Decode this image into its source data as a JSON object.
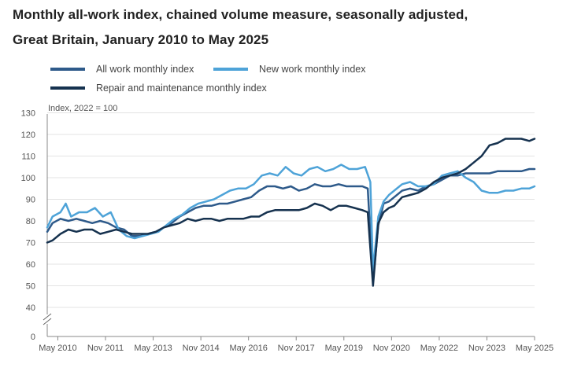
{
  "chart_data": {
    "type": "line",
    "title": "Monthly all-work index, chained volume measure, seasonally adjusted,",
    "subtitle": "Great Britain, January 2010 to May 2025",
    "ylabel": "Index, 2022 = 100",
    "ylim": [
      0,
      130
    ],
    "yticks": [
      0,
      40,
      50,
      60,
      70,
      80,
      90,
      100,
      110,
      120,
      130
    ],
    "xlim": [
      "2010-01",
      "2025-05"
    ],
    "xticks": [
      "May 2010",
      "Nov 2011",
      "May 2013",
      "Nov 2014",
      "May 2016",
      "Nov 2017",
      "May 2019",
      "Nov 2020",
      "May 2022",
      "Nov 2023",
      "May 2025"
    ],
    "xtick_dates": [
      "2010-05",
      "2011-11",
      "2013-05",
      "2014-11",
      "2016-05",
      "2017-11",
      "2019-05",
      "2020-11",
      "2022-05",
      "2023-11",
      "2025-05"
    ],
    "grid": true,
    "axis_break": true,
    "legend_position": "top-left",
    "series": [
      {
        "name": "All work monthly index",
        "color": "#2e5a8a",
        "points": [
          [
            "2010-01",
            75
          ],
          [
            "2010-03",
            79
          ],
          [
            "2010-06",
            81
          ],
          [
            "2010-09",
            80
          ],
          [
            "2010-12",
            81
          ],
          [
            "2011-03",
            80
          ],
          [
            "2011-06",
            79
          ],
          [
            "2011-09",
            80
          ],
          [
            "2011-12",
            79
          ],
          [
            "2012-03",
            77
          ],
          [
            "2012-06",
            76
          ],
          [
            "2012-09",
            73
          ],
          [
            "2012-12",
            73
          ],
          [
            "2013-03",
            74
          ],
          [
            "2013-06",
            75
          ],
          [
            "2013-09",
            77
          ],
          [
            "2013-12",
            79
          ],
          [
            "2014-03",
            82
          ],
          [
            "2014-06",
            84
          ],
          [
            "2014-09",
            86
          ],
          [
            "2014-12",
            87
          ],
          [
            "2015-03",
            87
          ],
          [
            "2015-06",
            88
          ],
          [
            "2015-09",
            88
          ],
          [
            "2015-12",
            89
          ],
          [
            "2016-03",
            90
          ],
          [
            "2016-06",
            91
          ],
          [
            "2016-09",
            94
          ],
          [
            "2016-12",
            96
          ],
          [
            "2017-03",
            96
          ],
          [
            "2017-06",
            95
          ],
          [
            "2017-09",
            96
          ],
          [
            "2017-12",
            94
          ],
          [
            "2018-03",
            95
          ],
          [
            "2018-06",
            97
          ],
          [
            "2018-09",
            96
          ],
          [
            "2018-12",
            96
          ],
          [
            "2019-03",
            97
          ],
          [
            "2019-06",
            96
          ],
          [
            "2019-09",
            96
          ],
          [
            "2019-12",
            96
          ],
          [
            "2020-02",
            95
          ],
          [
            "2020-04",
            52
          ],
          [
            "2020-06",
            78
          ],
          [
            "2020-08",
            88
          ],
          [
            "2020-10",
            89
          ],
          [
            "2020-12",
            91
          ],
          [
            "2021-03",
            94
          ],
          [
            "2021-06",
            95
          ],
          [
            "2021-09",
            94
          ],
          [
            "2021-12",
            96
          ],
          [
            "2022-03",
            97
          ],
          [
            "2022-06",
            99
          ],
          [
            "2022-09",
            101
          ],
          [
            "2022-12",
            101
          ],
          [
            "2023-03",
            102
          ],
          [
            "2023-06",
            102
          ],
          [
            "2023-09",
            102
          ],
          [
            "2023-12",
            102
          ],
          [
            "2024-03",
            103
          ],
          [
            "2024-06",
            103
          ],
          [
            "2024-09",
            103
          ],
          [
            "2024-12",
            103
          ],
          [
            "2025-03",
            104
          ],
          [
            "2025-05",
            104
          ]
        ]
      },
      {
        "name": "New work monthly index",
        "color": "#4ea3d8",
        "points": [
          [
            "2010-01",
            77
          ],
          [
            "2010-03",
            82
          ],
          [
            "2010-06",
            84
          ],
          [
            "2010-08",
            88
          ],
          [
            "2010-10",
            82
          ],
          [
            "2011-01",
            84
          ],
          [
            "2011-04",
            84
          ],
          [
            "2011-07",
            86
          ],
          [
            "2011-10",
            82
          ],
          [
            "2012-01",
            84
          ],
          [
            "2012-04",
            76
          ],
          [
            "2012-07",
            73
          ],
          [
            "2012-10",
            72
          ],
          [
            "2013-01",
            73
          ],
          [
            "2013-04",
            74
          ],
          [
            "2013-07",
            75
          ],
          [
            "2013-10",
            78
          ],
          [
            "2014-01",
            81
          ],
          [
            "2014-04",
            83
          ],
          [
            "2014-07",
            86
          ],
          [
            "2014-10",
            88
          ],
          [
            "2015-01",
            89
          ],
          [
            "2015-04",
            90
          ],
          [
            "2015-07",
            92
          ],
          [
            "2015-10",
            94
          ],
          [
            "2016-01",
            95
          ],
          [
            "2016-04",
            95
          ],
          [
            "2016-07",
            97
          ],
          [
            "2016-10",
            101
          ],
          [
            "2017-01",
            102
          ],
          [
            "2017-04",
            101
          ],
          [
            "2017-07",
            105
          ],
          [
            "2017-10",
            102
          ],
          [
            "2018-01",
            101
          ],
          [
            "2018-04",
            104
          ],
          [
            "2018-07",
            105
          ],
          [
            "2018-10",
            103
          ],
          [
            "2019-01",
            104
          ],
          [
            "2019-04",
            106
          ],
          [
            "2019-07",
            104
          ],
          [
            "2019-10",
            104
          ],
          [
            "2020-01",
            105
          ],
          [
            "2020-03",
            98
          ],
          [
            "2020-04",
            57
          ],
          [
            "2020-06",
            82
          ],
          [
            "2020-08",
            89
          ],
          [
            "2020-10",
            92
          ],
          [
            "2020-12",
            94
          ],
          [
            "2021-03",
            97
          ],
          [
            "2021-06",
            98
          ],
          [
            "2021-09",
            96
          ],
          [
            "2021-12",
            96
          ],
          [
            "2022-03",
            97
          ],
          [
            "2022-06",
            101
          ],
          [
            "2022-09",
            102
          ],
          [
            "2022-12",
            103
          ],
          [
            "2023-03",
            100
          ],
          [
            "2023-06",
            98
          ],
          [
            "2023-09",
            94
          ],
          [
            "2023-12",
            93
          ],
          [
            "2024-03",
            93
          ],
          [
            "2024-06",
            94
          ],
          [
            "2024-09",
            94
          ],
          [
            "2024-12",
            95
          ],
          [
            "2025-03",
            95
          ],
          [
            "2025-05",
            96
          ]
        ]
      },
      {
        "name": "Repair and maintenance monthly index",
        "color": "#16324f",
        "points": [
          [
            "2010-01",
            70
          ],
          [
            "2010-03",
            71
          ],
          [
            "2010-06",
            74
          ],
          [
            "2010-09",
            76
          ],
          [
            "2010-12",
            75
          ],
          [
            "2011-03",
            76
          ],
          [
            "2011-06",
            76
          ],
          [
            "2011-09",
            74
          ],
          [
            "2011-12",
            75
          ],
          [
            "2012-03",
            76
          ],
          [
            "2012-06",
            75
          ],
          [
            "2012-09",
            74
          ],
          [
            "2012-12",
            74
          ],
          [
            "2013-03",
            74
          ],
          [
            "2013-06",
            75
          ],
          [
            "2013-09",
            77
          ],
          [
            "2013-12",
            78
          ],
          [
            "2014-03",
            79
          ],
          [
            "2014-06",
            81
          ],
          [
            "2014-09",
            80
          ],
          [
            "2014-12",
            81
          ],
          [
            "2015-03",
            81
          ],
          [
            "2015-06",
            80
          ],
          [
            "2015-09",
            81
          ],
          [
            "2015-12",
            81
          ],
          [
            "2016-03",
            81
          ],
          [
            "2016-06",
            82
          ],
          [
            "2016-09",
            82
          ],
          [
            "2016-12",
            84
          ],
          [
            "2017-03",
            85
          ],
          [
            "2017-06",
            85
          ],
          [
            "2017-09",
            85
          ],
          [
            "2017-12",
            85
          ],
          [
            "2018-03",
            86
          ],
          [
            "2018-06",
            88
          ],
          [
            "2018-09",
            87
          ],
          [
            "2018-12",
            85
          ],
          [
            "2019-03",
            87
          ],
          [
            "2019-06",
            87
          ],
          [
            "2019-09",
            86
          ],
          [
            "2019-12",
            85
          ],
          [
            "2020-02",
            84
          ],
          [
            "2020-04",
            50
          ],
          [
            "2020-06",
            79
          ],
          [
            "2020-08",
            84
          ],
          [
            "2020-10",
            86
          ],
          [
            "2020-12",
            87
          ],
          [
            "2021-03",
            91
          ],
          [
            "2021-06",
            92
          ],
          [
            "2021-09",
            93
          ],
          [
            "2021-12",
            95
          ],
          [
            "2022-03",
            98
          ],
          [
            "2022-06",
            100
          ],
          [
            "2022-09",
            101
          ],
          [
            "2022-12",
            102
          ],
          [
            "2023-03",
            104
          ],
          [
            "2023-06",
            107
          ],
          [
            "2023-09",
            110
          ],
          [
            "2023-12",
            115
          ],
          [
            "2024-03",
            116
          ],
          [
            "2024-06",
            118
          ],
          [
            "2024-09",
            118
          ],
          [
            "2024-12",
            118
          ],
          [
            "2025-03",
            117
          ],
          [
            "2025-05",
            118
          ]
        ]
      }
    ]
  }
}
